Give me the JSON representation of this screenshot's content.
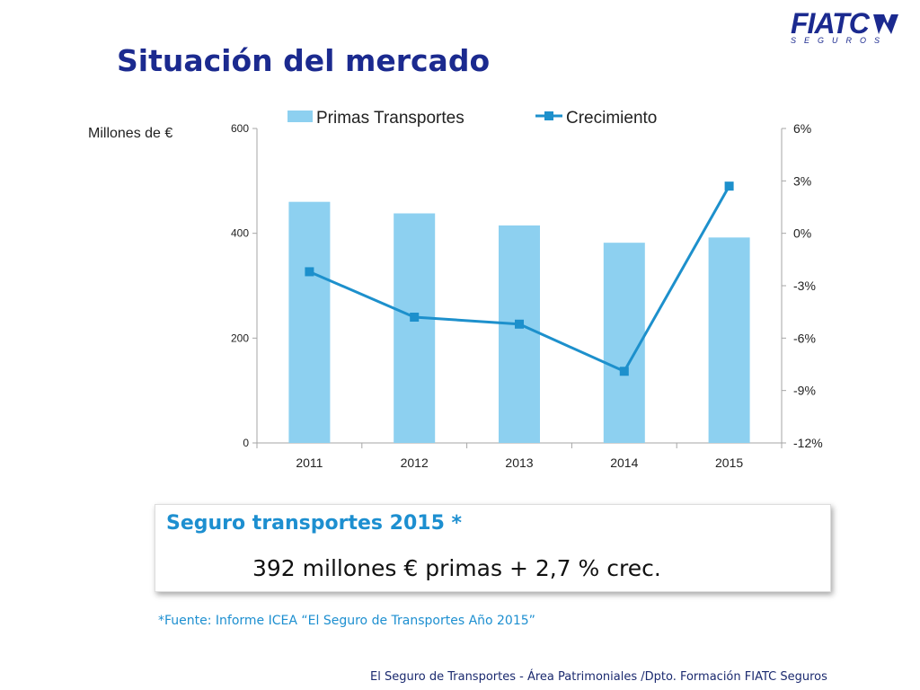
{
  "page": {
    "title": "Situación del mercado",
    "logo": {
      "name": "FIATC",
      "sub": "SEGUROS",
      "icon": "fiatc-logo-mark"
    },
    "unit_label": "Millones de €",
    "highlight_box": {
      "heading": "Seguro transportes 2015  *",
      "value": "392 millones € primas  + 2,7 % crec."
    },
    "source": "*Fuente: Informe ICEA “El Seguro de Transportes Año 2015”",
    "footer": "El Seguro de Transportes  -  Área Patrimoniales /Dpto. Formación  FIATC Seguros"
  },
  "chart_data": {
    "type": "bar",
    "categories": [
      "2011",
      "2012",
      "2013",
      "2014",
      "2015"
    ],
    "series": [
      {
        "name": "Primas Transportes",
        "type": "bar",
        "axis": "left",
        "color": "#8dd0f0",
        "values": [
          460,
          438,
          415,
          382,
          392
        ]
      },
      {
        "name": "Crecimiento",
        "type": "line",
        "axis": "right",
        "color": "#1d90cc",
        "marker": "square",
        "values": [
          -2.2,
          -4.8,
          -5.2,
          -7.9,
          2.7
        ]
      }
    ],
    "y_left": {
      "min": 0,
      "max": 600,
      "ticks": [
        0,
        200,
        400,
        600
      ]
    },
    "y_right": {
      "min": -12,
      "max": 6,
      "ticks": [
        -12,
        -9,
        -6,
        -3,
        0,
        3,
        6
      ],
      "tick_labels": [
        "-12%",
        "-9%",
        "-6%",
        "-3%",
        "0%",
        "3%",
        "6%"
      ]
    },
    "legend": "top",
    "grid": false
  }
}
